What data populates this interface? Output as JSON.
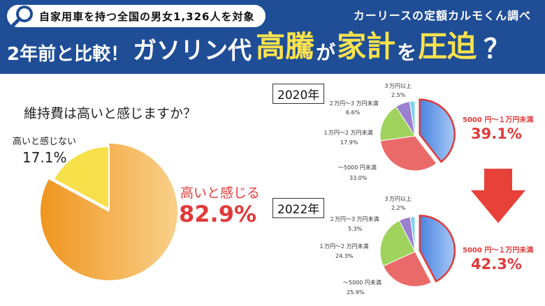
{
  "header": {
    "survey_badge": "自家用車を持つ全国の男女1,326人を対象",
    "source": "カーリースの定額カルモくん調べ",
    "headline": {
      "part1": "2年前と比較！",
      "part2": "ガソリン代",
      "part3": "高騰",
      "part4": "が",
      "part5": "家計",
      "part6": "を",
      "part7": "圧迫",
      "part8": "？"
    },
    "colors": {
      "band": "#1f4e96",
      "accent": "#ffe34d"
    }
  },
  "chart_data": [
    {
      "type": "pie",
      "title": "維持費は高いと感じますか？",
      "slices": [
        {
          "label": "高いと感じる",
          "value": 82.9,
          "display": "82.9%",
          "color": "#f2a63a"
        },
        {
          "label": "高いと感じない",
          "value": 17.1,
          "display": "17.1%",
          "color": "#f7e04a"
        }
      ]
    },
    {
      "type": "pie",
      "title": "2020年",
      "slices": [
        {
          "label": "5000 円～１万円未満",
          "value": 39.1,
          "display": "39.1%",
          "color": "#5f93e6"
        },
        {
          "label": "～5000 円未満",
          "value": 33.0,
          "display": "33.0%",
          "color": "#ea6a6a"
        },
        {
          "label": "１万円～2 万円未満",
          "value": 17.9,
          "display": "17.9%",
          "color": "#9fd35e"
        },
        {
          "label": "２万円～3 万円未満",
          "value": 6.6,
          "display": "6.6%",
          "color": "#9b7fd0"
        },
        {
          "label": "３万円以上",
          "value": 2.5,
          "display": "2.5%",
          "color": "#7fd6e8"
        }
      ]
    },
    {
      "type": "pie",
      "title": "2022年",
      "slices": [
        {
          "label": "5000 円～１万円未満",
          "value": 42.3,
          "display": "42.3%",
          "color": "#5f93e6"
        },
        {
          "label": "～5000 円未満",
          "value": 25.9,
          "display": "25.9%",
          "color": "#ea6a6a"
        },
        {
          "label": "１万円～2 万円未満",
          "value": 24.3,
          "display": "24.3%",
          "color": "#9fd35e"
        },
        {
          "label": "２万円～3 万円未満",
          "value": 5.3,
          "display": "5.3%",
          "color": "#9b7fd0"
        },
        {
          "label": "３万円以上",
          "value": 2.2,
          "display": "2.2%",
          "color": "#7fd6e8"
        }
      ]
    }
  ],
  "arrow_color": "#e8413a",
  "highlight_color": "#e03a3a"
}
